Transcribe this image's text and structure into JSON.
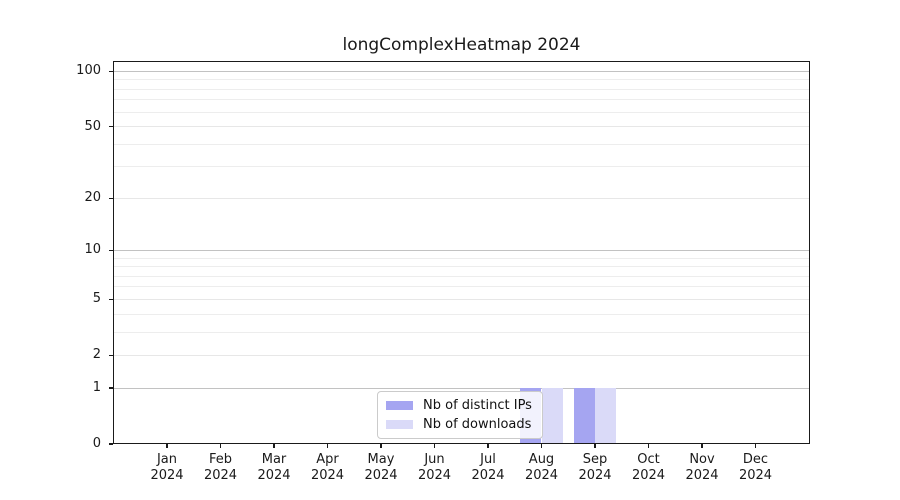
{
  "title": "longComplexHeatmap 2024",
  "chart_data": {
    "type": "bar",
    "title": "longComplexHeatmap 2024",
    "categories": [
      "Jan 2024",
      "Feb 2024",
      "Mar 2024",
      "Apr 2024",
      "May 2024",
      "Jun 2024",
      "Jul 2024",
      "Aug 2024",
      "Sep 2024",
      "Oct 2024",
      "Nov 2024",
      "Dec 2024"
    ],
    "x_tick_months": [
      "Jan",
      "Feb",
      "Mar",
      "Apr",
      "May",
      "Jun",
      "Jul",
      "Aug",
      "Sep",
      "Oct",
      "Nov",
      "Dec"
    ],
    "x_tick_year": "2024",
    "series": [
      {
        "name": "Nb of distinct IPs",
        "color": "#a5a5f1",
        "values": [
          0,
          0,
          0,
          0,
          0,
          0,
          0,
          1,
          1,
          0,
          0,
          0
        ]
      },
      {
        "name": "Nb of downloads",
        "color": "#dadaf8",
        "values": [
          0,
          0,
          0,
          0,
          0,
          0,
          0,
          1,
          1,
          0,
          0,
          0
        ]
      }
    ],
    "yscale": "log1p",
    "ylim": [
      0,
      114
    ],
    "ytick_labels": [
      "0",
      "1",
      "2",
      "5",
      "10",
      "20",
      "50",
      "100"
    ],
    "yticks_labeled": [
      0,
      1,
      2,
      5,
      10,
      20,
      50,
      100
    ],
    "grid": {
      "emphasis_ticks": [
        1,
        10,
        100
      ],
      "regular_ticks": [
        2,
        5,
        20,
        50
      ],
      "minor_ticks": [
        3,
        4,
        6,
        7,
        8,
        9,
        30,
        40,
        60,
        70,
        80,
        90
      ],
      "emphasis_color": "#c2c2c2",
      "regular_color": "#e7e7e7",
      "minor_color": "#ededed"
    },
    "legend_position": "lower center",
    "legend": {
      "items": [
        {
          "label": "Nb of distinct IPs",
          "color": "#a5a5f1"
        },
        {
          "label": "Nb of downloads",
          "color": "#dadaf8"
        }
      ]
    }
  }
}
